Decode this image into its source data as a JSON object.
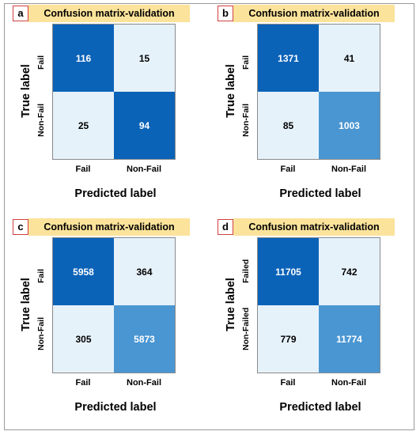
{
  "common": {
    "xlabel": "Predicted label",
    "ylabel": "True label"
  },
  "chart_data": [
    {
      "type": "heatmap",
      "panel_letter": "a",
      "title": "Confusion matrix-validation",
      "xlabel": "Predicted label",
      "ylabel": "True label",
      "x_categories": [
        "Fail",
        "Non-Fail"
      ],
      "y_categories": [
        "Fail",
        "Non-Fail"
      ],
      "values": [
        [
          116,
          15
        ],
        [
          25,
          94
        ]
      ],
      "colors": [
        [
          "#0b63b8",
          "#e6f2fa"
        ],
        [
          "#e6f2fa",
          "#0b63b8"
        ]
      ]
    },
    {
      "type": "heatmap",
      "panel_letter": "b",
      "title": "Confusion matrix-validation",
      "xlabel": "Predicted label",
      "ylabel": "True label",
      "x_categories": [
        "Fail",
        "Non-Fail"
      ],
      "y_categories": [
        "Fail",
        "Non-Fail"
      ],
      "values": [
        [
          1371,
          41
        ],
        [
          85,
          1003
        ]
      ],
      "colors": [
        [
          "#0b63b8",
          "#e6f2fa"
        ],
        [
          "#e6f2fa",
          "#4a96d2"
        ]
      ]
    },
    {
      "type": "heatmap",
      "panel_letter": "c",
      "title": "Confusion matrix-validation",
      "xlabel": "Predicted label",
      "ylabel": "True label",
      "x_categories": [
        "Fail",
        "Non-Fail"
      ],
      "y_categories": [
        "Fail",
        "Non-Fail"
      ],
      "values": [
        [
          5958,
          364
        ],
        [
          305,
          5873
        ]
      ],
      "colors": [
        [
          "#0b63b8",
          "#e6f2fa"
        ],
        [
          "#e6f2fa",
          "#4a96d2"
        ]
      ]
    },
    {
      "type": "heatmap",
      "panel_letter": "d",
      "title": "Confusion matrix-validation",
      "xlabel": "Predicted label",
      "ylabel": "True label",
      "x_categories": [
        "Fail",
        "Non-Fail"
      ],
      "y_categories": [
        "Failed",
        "Non-Failed"
      ],
      "values": [
        [
          11705,
          742
        ],
        [
          779,
          11774
        ]
      ],
      "colors": [
        [
          "#0b63b8",
          "#e6f2fa"
        ],
        [
          "#e6f2fa",
          "#4a96d2"
        ]
      ]
    }
  ]
}
